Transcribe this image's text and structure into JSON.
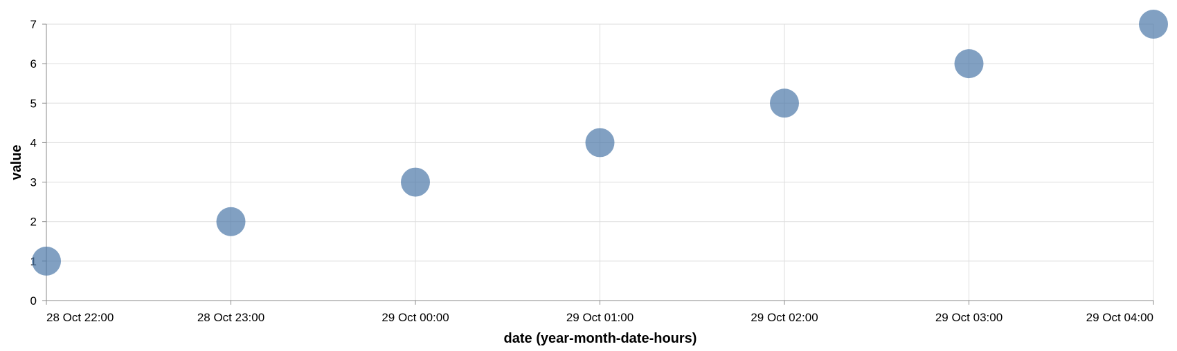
{
  "chart_data": {
    "type": "scatter",
    "xlabel": "date (year-month-date-hours)",
    "ylabel": "value",
    "x_ticks": [
      "28 Oct 22:00",
      "28 Oct 23:00",
      "29 Oct 00:00",
      "29 Oct 01:00",
      "29 Oct 02:00",
      "29 Oct 03:00",
      "29 Oct 04:00"
    ],
    "x": [
      "28 Oct 22:00",
      "28 Oct 23:00",
      "29 Oct 00:00",
      "29 Oct 01:00",
      "29 Oct 02:00",
      "29 Oct 03:00",
      "29 Oct 04:00"
    ],
    "values": [
      1,
      2,
      3,
      4,
      5,
      6,
      7
    ],
    "y_ticks": [
      0,
      1,
      2,
      3,
      4,
      5,
      6,
      7
    ],
    "ylim": [
      0,
      7
    ],
    "grid": true,
    "color": "#4c78a8"
  }
}
